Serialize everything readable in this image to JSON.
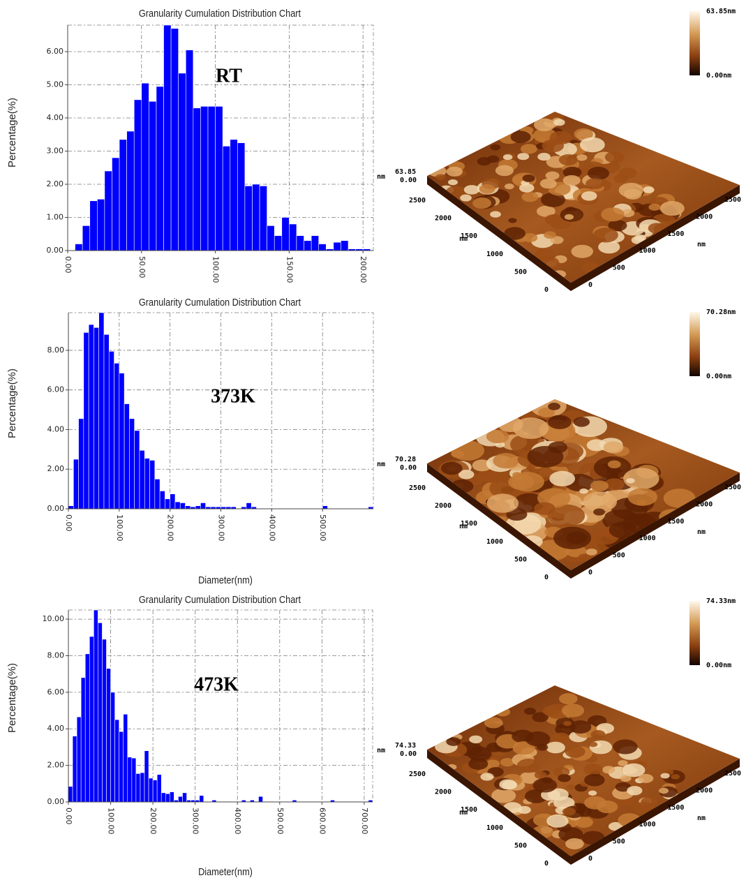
{
  "chart_data": [
    {
      "type": "histogram",
      "title": "Granularity Cumulation Distribution  Chart",
      "ylabel": "Percentage(%)",
      "annotation": "RT",
      "color": "#0000ff",
      "grid": true,
      "bins": [
        5,
        10,
        15,
        20,
        25,
        30,
        35,
        40,
        45,
        50,
        55,
        60,
        65,
        70,
        75,
        80,
        85,
        90,
        95,
        100,
        105,
        110,
        115,
        120,
        125,
        130,
        135,
        140,
        145,
        150,
        155,
        160,
        165,
        170,
        175,
        180,
        185,
        190,
        195,
        200,
        205
      ],
      "values": [
        0.2,
        0.75,
        1.5,
        1.55,
        2.4,
        2.8,
        3.35,
        3.6,
        4.55,
        5.05,
        4.5,
        4.95,
        6.8,
        6.7,
        5.35,
        6.05,
        4.3,
        4.35,
        4.35,
        4.35,
        3.15,
        3.35,
        3.25,
        1.95,
        2.0,
        1.95,
        0.75,
        0.45,
        1.0,
        0.8,
        0.45,
        0.3,
        0.45,
        0.2,
        0.05,
        0.25,
        0.3,
        0.05,
        0.05,
        0.05
      ],
      "xlim": [
        0,
        207
      ],
      "ylim": [
        0,
        6.8
      ],
      "xticks": [
        {
          "value": 0,
          "label": "0.00"
        },
        {
          "value": 50,
          "label": "50.00"
        },
        {
          "value": 100,
          "label": "100.00"
        },
        {
          "value": 150,
          "label": "150.00"
        },
        {
          "value": 200,
          "label": "200.00"
        }
      ],
      "yticks": [
        {
          "value": 0,
          "label": "0.00"
        },
        {
          "value": 1,
          "label": "1.00"
        },
        {
          "value": 2,
          "label": "2.00"
        },
        {
          "value": 3,
          "label": "3.00"
        },
        {
          "value": 4,
          "label": "4.00"
        },
        {
          "value": 5,
          "label": "5.00"
        },
        {
          "value": 6,
          "label": "6.00"
        }
      ]
    },
    {
      "type": "histogram",
      "title": "Granularity Cumulation Distribution  Chart",
      "ylabel": "Percentage(%)",
      "xlabel": "Diameter(nm)",
      "annotation": "373K",
      "color": "#0000ff",
      "grid": true,
      "bins": [
        0,
        10,
        20,
        30,
        40,
        50,
        60,
        70,
        80,
        90,
        100,
        110,
        120,
        130,
        140,
        150,
        160,
        170,
        180,
        190,
        200,
        210,
        220,
        230,
        240,
        250,
        260,
        270,
        280,
        290,
        300,
        310,
        320,
        330,
        340,
        350,
        360,
        370,
        380,
        390,
        400,
        410,
        420,
        430,
        440,
        450,
        460,
        470,
        480,
        490,
        500,
        510,
        520,
        530,
        540,
        550,
        560,
        570,
        580,
        590,
        600
      ],
      "values": [
        0.15,
        2.5,
        4.55,
        8.9,
        9.3,
        9.15,
        9.9,
        8.8,
        7.95,
        7.35,
        6.85,
        5.3,
        4.55,
        3.95,
        2.95,
        2.55,
        2.45,
        1.5,
        0.9,
        0.5,
        0.75,
        0.35,
        0.3,
        0.15,
        0.1,
        0.15,
        0.3,
        0.1,
        0.1,
        0.1,
        0.1,
        0.1,
        0.1,
        0,
        0.1,
        0.3,
        0.1,
        0,
        0,
        0,
        0,
        0,
        0,
        0,
        0,
        0,
        0,
        0,
        0,
        0,
        0.15,
        0,
        0,
        0,
        0,
        0,
        0,
        0,
        0,
        0.1
      ],
      "xlim": [
        0,
        600
      ],
      "ylim": [
        0,
        9.9
      ],
      "xticks": [
        {
          "value": 0,
          "label": "0.00"
        },
        {
          "value": 100,
          "label": "100.00"
        },
        {
          "value": 200,
          "label": "200.00"
        },
        {
          "value": 300,
          "label": "300.00"
        },
        {
          "value": 400,
          "label": "400.00"
        },
        {
          "value": 500,
          "label": "500.00"
        }
      ],
      "yticks": [
        {
          "value": 0,
          "label": "0.00"
        },
        {
          "value": 2,
          "label": "2.00"
        },
        {
          "value": 4,
          "label": "4.00"
        },
        {
          "value": 6,
          "label": "6.00"
        },
        {
          "value": 8,
          "label": "8.00"
        }
      ]
    },
    {
      "type": "histogram",
      "title": "Granularity Cumulation Distribution  Chart",
      "ylabel": "Percentage(%)",
      "xlabel": "Diameter(nm)",
      "annotation": "473K",
      "color": "#0000ff",
      "grid": true,
      "bins": [
        0,
        10,
        20,
        30,
        40,
        50,
        60,
        70,
        80,
        90,
        100,
        110,
        120,
        130,
        140,
        150,
        160,
        170,
        180,
        190,
        200,
        210,
        220,
        230,
        240,
        250,
        260,
        270,
        280,
        290,
        300,
        310,
        320,
        330,
        340,
        350,
        360,
        370,
        380,
        390,
        400,
        410,
        420,
        430,
        440,
        450,
        460,
        470,
        480,
        490,
        500,
        510,
        520,
        530,
        540,
        550,
        560,
        570,
        580,
        590,
        600,
        610,
        620,
        630,
        640,
        650,
        660,
        670,
        680,
        690,
        700,
        710,
        720
      ],
      "values": [
        0.85,
        3.6,
        4.65,
        6.8,
        8.1,
        9.05,
        10.5,
        9.8,
        8.9,
        7.3,
        6.0,
        4.5,
        3.85,
        4.8,
        2.45,
        2.4,
        1.55,
        1.6,
        2.8,
        1.3,
        1.2,
        1.5,
        0.5,
        0.45,
        0.55,
        0.1,
        0.3,
        0.5,
        0.1,
        0.1,
        0.1,
        0.35,
        0,
        0,
        0.1,
        0,
        0,
        0,
        0,
        0,
        0,
        0.1,
        0,
        0.1,
        0,
        0.3,
        0,
        0,
        0,
        0,
        0,
        0,
        0,
        0.1,
        0,
        0,
        0,
        0,
        0,
        0,
        0,
        0,
        0.1,
        0,
        0,
        0,
        0,
        0,
        0,
        0,
        0,
        0.1
      ],
      "xlim": [
        0,
        720
      ],
      "ylim": [
        0,
        10.5
      ],
      "xticks": [
        {
          "value": 0,
          "label": "0.00"
        },
        {
          "value": 100,
          "label": "100.00"
        },
        {
          "value": 200,
          "label": "200.00"
        },
        {
          "value": 300,
          "label": "300.00"
        },
        {
          "value": 400,
          "label": "400.00"
        },
        {
          "value": 500,
          "label": "500.00"
        },
        {
          "value": 600,
          "label": "600.00"
        },
        {
          "value": 700,
          "label": "700.00"
        }
      ],
      "yticks": [
        {
          "value": 0,
          "label": "0.00"
        },
        {
          "value": 2,
          "label": "2.00"
        },
        {
          "value": 4,
          "label": "4.00"
        },
        {
          "value": 6,
          "label": "6.00"
        },
        {
          "value": 8,
          "label": "8.00"
        },
        {
          "value": 10,
          "label": "10.00"
        }
      ]
    }
  ],
  "afm_images": [
    {
      "colorbar_max": "63.85nm",
      "colorbar_min": "0.00nm",
      "z_max": "63.85",
      "z_min": "0.00",
      "z_unit": "nm",
      "y_ticks": [
        "2500",
        "2000",
        "1500",
        "1000",
        "500",
        "0"
      ],
      "y_unit": "nm",
      "x_ticks": [
        "0",
        "500",
        "1000",
        "1500",
        "2000",
        "2500"
      ],
      "x_unit": "nm"
    },
    {
      "colorbar_max": "70.28nm",
      "colorbar_min": "0.00nm",
      "z_max": "70.28",
      "z_min": "0.00",
      "z_unit": "nm",
      "y_ticks": [
        "2500",
        "2000",
        "1500",
        "1000",
        "500",
        "0"
      ],
      "y_unit": "nm",
      "x_ticks": [
        "0",
        "500",
        "1000",
        "1500",
        "2000",
        "2500"
      ],
      "x_unit": "nm"
    },
    {
      "colorbar_max": "74.33nm",
      "colorbar_min": "0.00nm",
      "z_max": "74.33",
      "z_min": "0.00",
      "z_unit": "nm",
      "y_ticks": [
        "2500",
        "2000",
        "1500",
        "1000",
        "500",
        "0"
      ],
      "y_unit": "nm",
      "x_ticks": [
        "0",
        "500",
        "1000",
        "1500",
        "2000",
        "2500"
      ],
      "x_unit": "nm"
    }
  ]
}
